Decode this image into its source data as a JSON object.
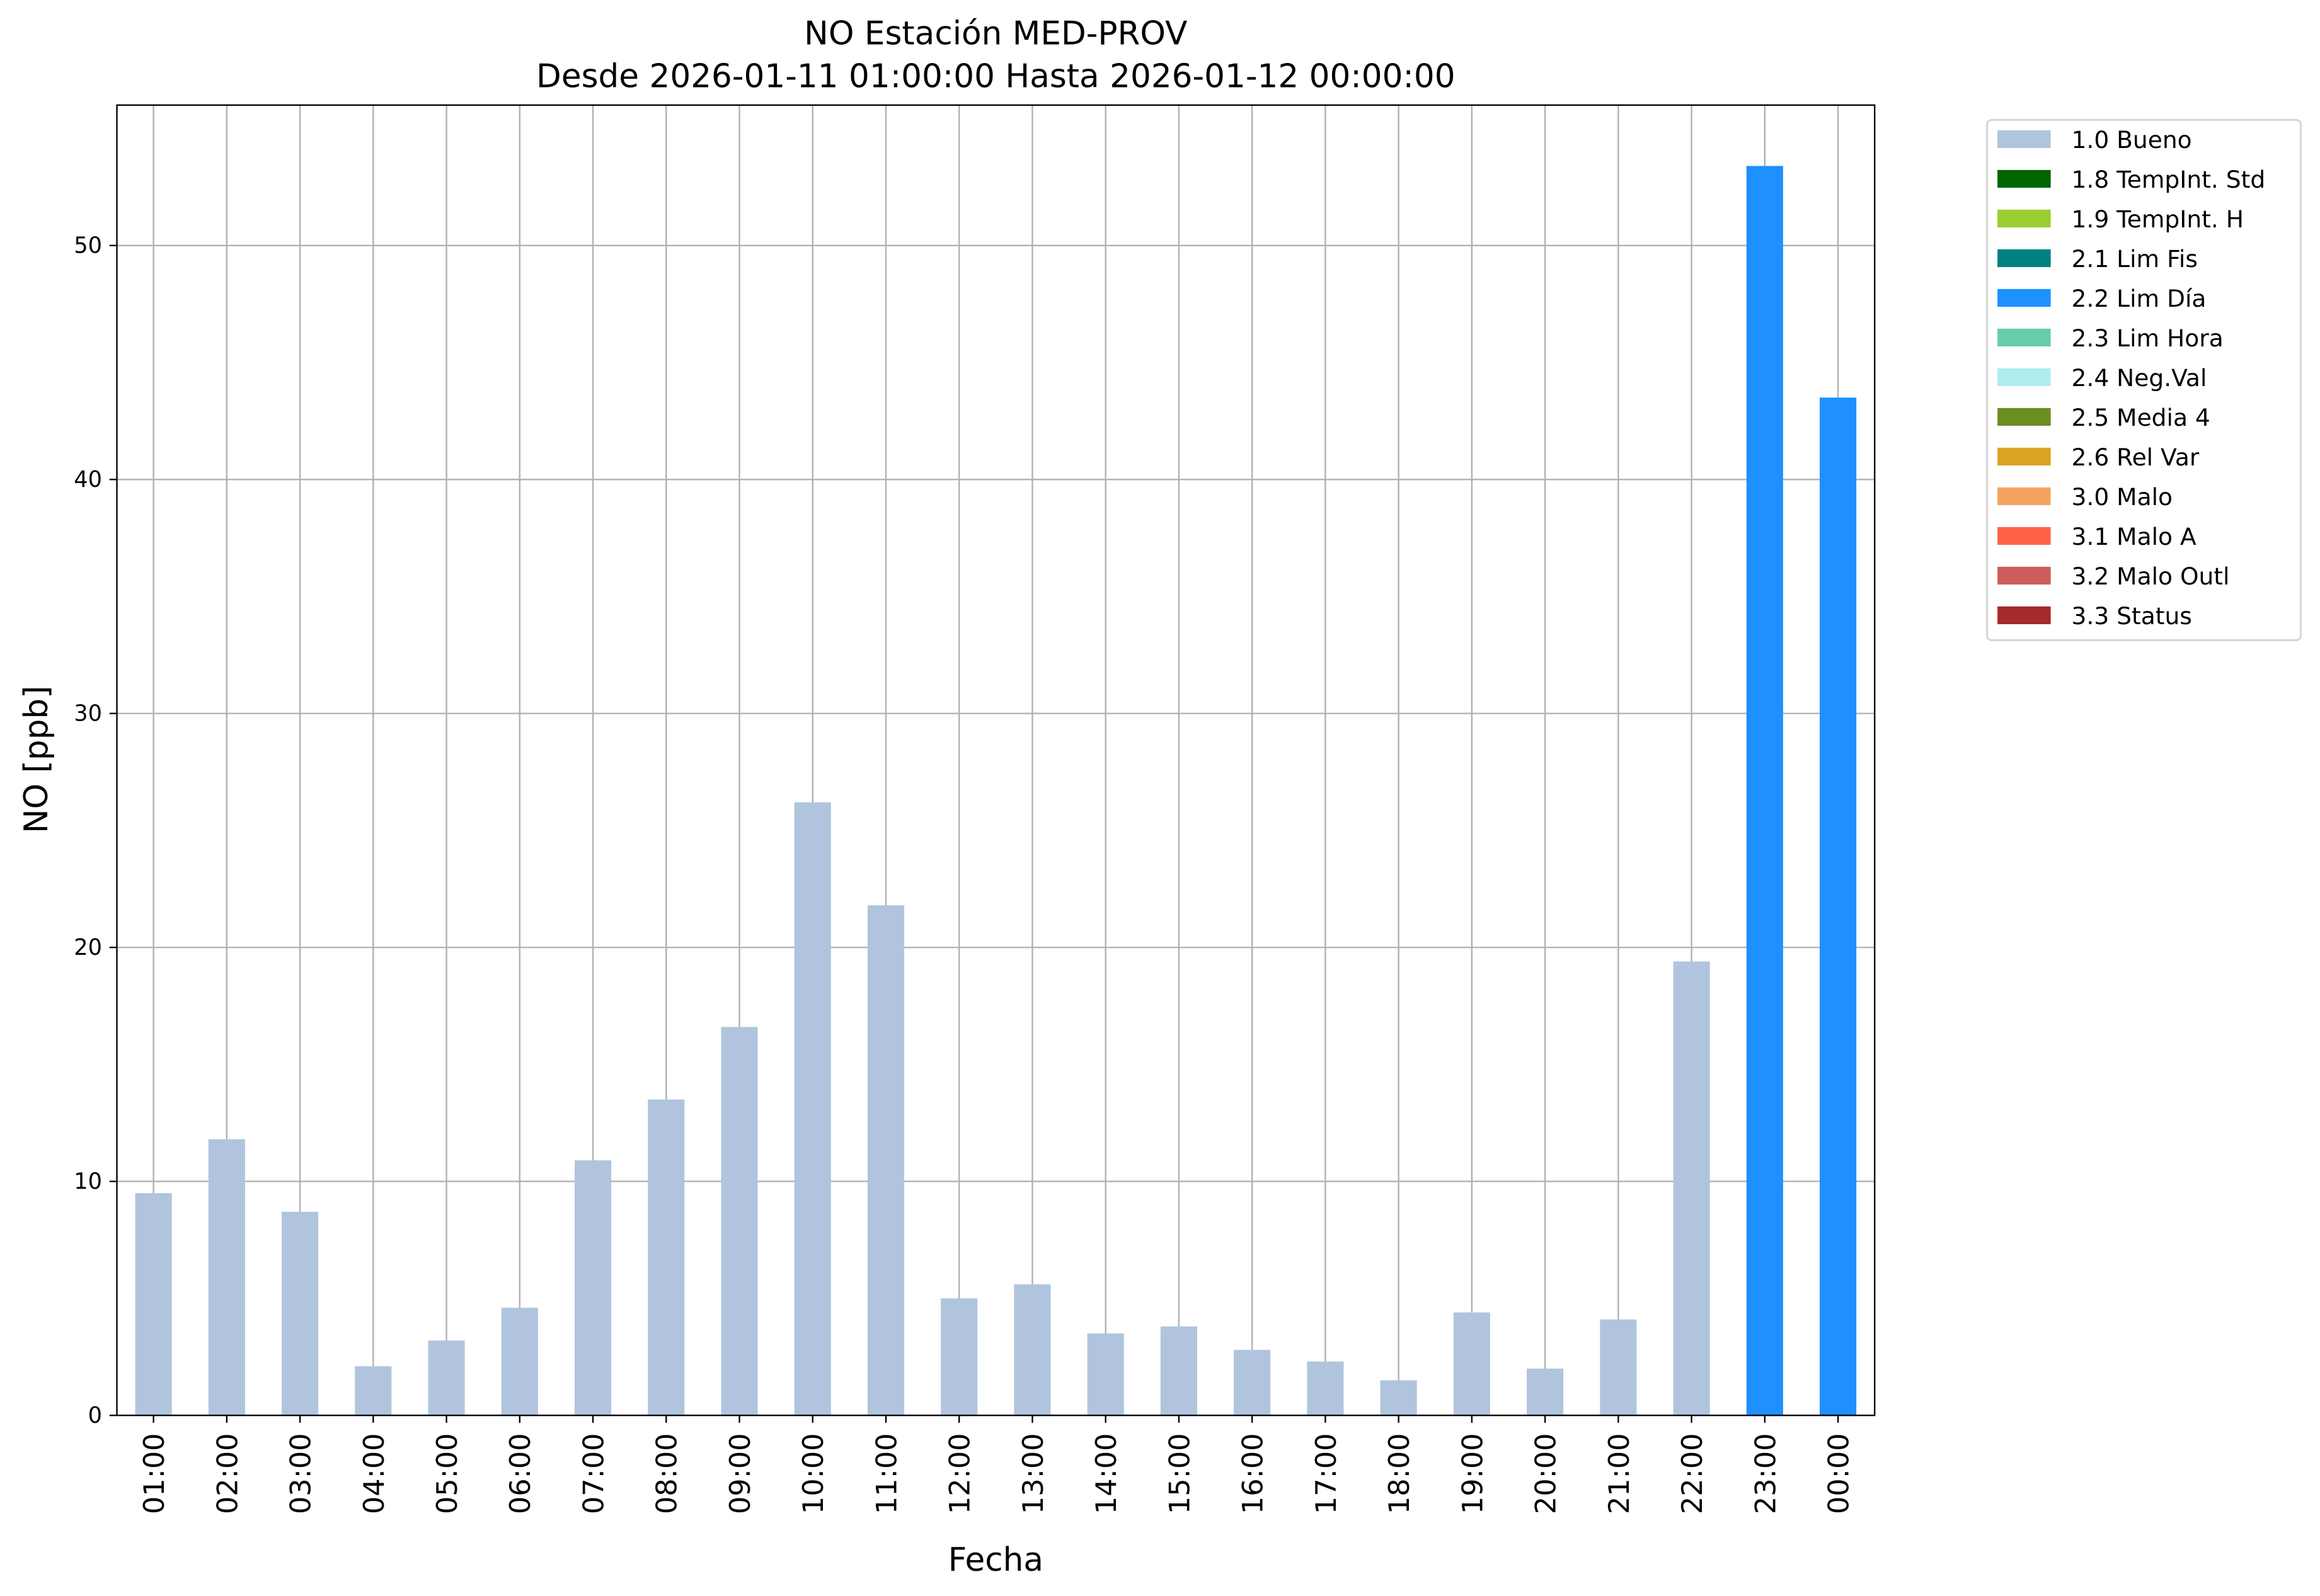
{
  "chart_data": {
    "type": "bar",
    "stacked": true,
    "title": "NO Estación MED-PROV",
    "subtitle": "Desde 2026-01-11 01:00:00 Hasta 2026-01-12 00:00:00",
    "xlabel": "Fecha",
    "ylabel": "NO [ppb]",
    "categories": [
      "01:00",
      "02:00",
      "03:00",
      "04:00",
      "05:00",
      "06:00",
      "07:00",
      "08:00",
      "09:00",
      "10:00",
      "11:00",
      "12:00",
      "13:00",
      "14:00",
      "15:00",
      "16:00",
      "17:00",
      "18:00",
      "19:00",
      "20:00",
      "21:00",
      "22:00",
      "23:00",
      "00:00"
    ],
    "ylim": [
      0,
      56
    ],
    "yticks": [
      0,
      10,
      20,
      30,
      40,
      50
    ],
    "grid": true,
    "legend": "outside right",
    "series": [
      {
        "name": "1.0 Bueno",
        "color": "#b0c4de",
        "values": [
          9.5,
          11.8,
          8.7,
          2.1,
          3.2,
          4.6,
          10.9,
          13.5,
          16.6,
          26.2,
          21.8,
          5.0,
          5.6,
          3.5,
          3.8,
          2.8,
          2.3,
          1.5,
          4.4,
          2.0,
          4.1,
          19.4,
          null,
          null
        ]
      },
      {
        "name": "1.8 TempInt. Std",
        "color": "#006400",
        "values": [
          null,
          null,
          null,
          null,
          null,
          null,
          null,
          null,
          null,
          null,
          null,
          null,
          null,
          null,
          null,
          null,
          null,
          null,
          null,
          null,
          null,
          null,
          null,
          null
        ]
      },
      {
        "name": "1.9 TempInt. H",
        "color": "#9acd32",
        "values": [
          null,
          null,
          null,
          null,
          null,
          null,
          null,
          null,
          null,
          null,
          null,
          null,
          null,
          null,
          null,
          null,
          null,
          null,
          null,
          null,
          null,
          null,
          null,
          null
        ]
      },
      {
        "name": "2.1 Lim Fis",
        "color": "#008080",
        "values": [
          null,
          null,
          null,
          null,
          null,
          null,
          null,
          null,
          null,
          null,
          null,
          null,
          null,
          null,
          null,
          null,
          null,
          null,
          null,
          null,
          null,
          null,
          null,
          null
        ]
      },
      {
        "name": "2.2 Lim Día",
        "color": "#1e90ff",
        "values": [
          null,
          null,
          null,
          null,
          null,
          null,
          null,
          null,
          null,
          null,
          null,
          null,
          null,
          null,
          null,
          null,
          null,
          null,
          null,
          null,
          null,
          null,
          53.4,
          43.5
        ]
      },
      {
        "name": "2.3 Lim Hora",
        "color": "#66cdaa",
        "values": [
          null,
          null,
          null,
          null,
          null,
          null,
          null,
          null,
          null,
          null,
          null,
          null,
          null,
          null,
          null,
          null,
          null,
          null,
          null,
          null,
          null,
          null,
          null,
          null
        ]
      },
      {
        "name": "2.4 Neg.Val",
        "color": "#afeeee",
        "values": [
          null,
          null,
          null,
          null,
          null,
          null,
          null,
          null,
          null,
          null,
          null,
          null,
          null,
          null,
          null,
          null,
          null,
          null,
          null,
          null,
          null,
          null,
          null,
          null
        ]
      },
      {
        "name": "2.5 Media 4",
        "color": "#6b8e23",
        "values": [
          null,
          null,
          null,
          null,
          null,
          null,
          null,
          null,
          null,
          null,
          null,
          null,
          null,
          null,
          null,
          null,
          null,
          null,
          null,
          null,
          null,
          null,
          null,
          null
        ]
      },
      {
        "name": "2.6 Rel Var",
        "color": "#daa520",
        "values": [
          null,
          null,
          null,
          null,
          null,
          null,
          null,
          null,
          null,
          null,
          null,
          null,
          null,
          null,
          null,
          null,
          null,
          null,
          null,
          null,
          null,
          null,
          null,
          null
        ]
      },
      {
        "name": "3.0 Malo",
        "color": "#f4a460",
        "values": [
          null,
          null,
          null,
          null,
          null,
          null,
          null,
          null,
          null,
          null,
          null,
          null,
          null,
          null,
          null,
          null,
          null,
          null,
          null,
          null,
          null,
          null,
          null,
          null
        ]
      },
      {
        "name": "3.1 Malo A",
        "color": "#ff6347",
        "values": [
          null,
          null,
          null,
          null,
          null,
          null,
          null,
          null,
          null,
          null,
          null,
          null,
          null,
          null,
          null,
          null,
          null,
          null,
          null,
          null,
          null,
          null,
          null,
          null
        ]
      },
      {
        "name": "3.2 Malo Outl",
        "color": "#cd5c5c",
        "values": [
          null,
          null,
          null,
          null,
          null,
          null,
          null,
          null,
          null,
          null,
          null,
          null,
          null,
          null,
          null,
          null,
          null,
          null,
          null,
          null,
          null,
          null,
          null,
          null
        ]
      },
      {
        "name": "3.3 Status",
        "color": "#a52a2a",
        "values": [
          null,
          null,
          null,
          null,
          null,
          null,
          null,
          null,
          null,
          null,
          null,
          null,
          null,
          null,
          null,
          null,
          null,
          null,
          null,
          null,
          null,
          null,
          null,
          null
        ]
      }
    ]
  }
}
